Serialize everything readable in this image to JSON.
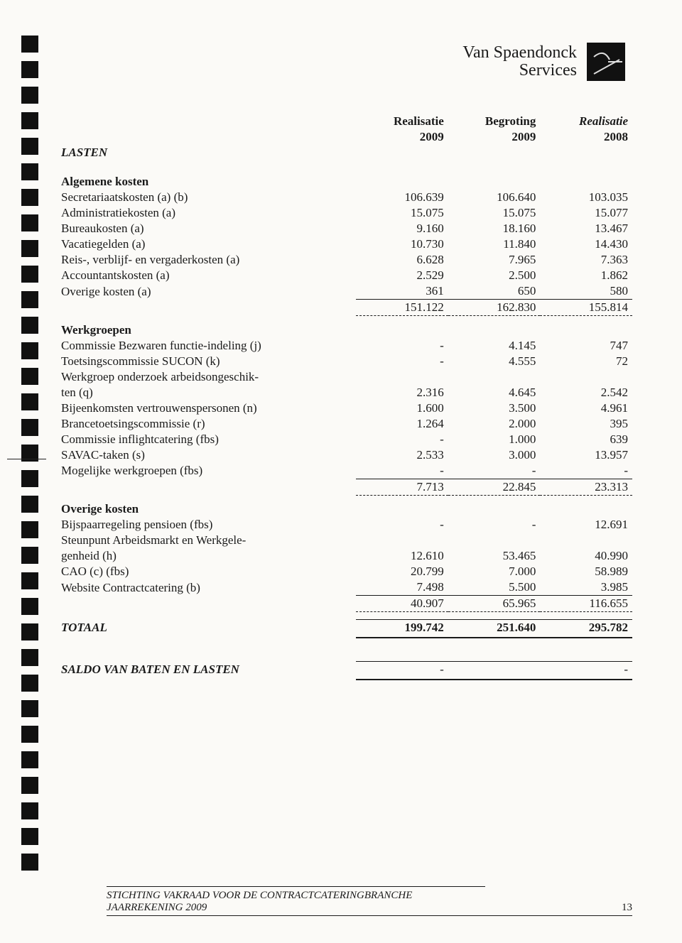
{
  "colors": {
    "background": "#fbfaf7",
    "text": "#1a1a1a",
    "logo_bg": "#111111",
    "logo_stroke": "#dcdcdc"
  },
  "typography": {
    "body_fontsize": 17,
    "header_fontsize": 24,
    "family": "Times New Roman"
  },
  "header": {
    "line1": "Van Spaendonck",
    "line2": "Services"
  },
  "columns": {
    "col1": "Realisatie",
    "col1_year": "2009",
    "col2": "Begroting",
    "col2_year": "2009",
    "col3": "Realisatie",
    "col3_year": "2008"
  },
  "lasten_heading": "LASTEN",
  "sections": {
    "algemene": {
      "title": "Algemene kosten",
      "rows": [
        {
          "label": "Secretariaatskosten (a) (b)",
          "v1": "106.639",
          "v2": "106.640",
          "v3": "103.035"
        },
        {
          "label": "Administratiekosten (a)",
          "v1": "15.075",
          "v2": "15.075",
          "v3": "15.077"
        },
        {
          "label": "Bureaukosten (a)",
          "v1": "9.160",
          "v2": "18.160",
          "v3": "13.467"
        },
        {
          "label": "Vacatiegelden (a)",
          "v1": "10.730",
          "v2": "11.840",
          "v3": "14.430"
        },
        {
          "label": "Reis-, verblijf- en vergaderkosten (a)",
          "v1": "6.628",
          "v2": "7.965",
          "v3": "7.363"
        },
        {
          "label": "Accountantskosten (a)",
          "v1": "2.529",
          "v2": "2.500",
          "v3": "1.862"
        },
        {
          "label": "Overige kosten (a)",
          "v1": "361",
          "v2": "650",
          "v3": "580"
        }
      ],
      "subtotal": {
        "v1": "151.122",
        "v2": "162.830",
        "v3": "155.814"
      }
    },
    "werkgroepen": {
      "title": "Werkgroepen",
      "rows": [
        {
          "label": "Commissie Bezwaren functie-indeling (j)",
          "v1": "-",
          "v2": "4.145",
          "v3": "747"
        },
        {
          "label": "Toetsingscommissie SUCON (k)",
          "v1": "-",
          "v2": "4.555",
          "v3": "72"
        },
        {
          "label": "Werkgroep onderzoek arbeidsongeschik-",
          "v1": "",
          "v2": "",
          "v3": ""
        },
        {
          "label": "ten (q)",
          "v1": "2.316",
          "v2": "4.645",
          "v3": "2.542"
        },
        {
          "label": "Bijeenkomsten vertrouwenspersonen (n)",
          "v1": "1.600",
          "v2": "3.500",
          "v3": "4.961"
        },
        {
          "label": "Brancetoetsingscommissie (r)",
          "v1": "1.264",
          "v2": "2.000",
          "v3": "395"
        },
        {
          "label": "Commissie inflightcatering (fbs)",
          "v1": "-",
          "v2": "1.000",
          "v3": "639"
        },
        {
          "label": "SAVAC-taken (s)",
          "v1": "2.533",
          "v2": "3.000",
          "v3": "13.957"
        },
        {
          "label": "Mogelijke werkgroepen (fbs)",
          "v1": "-",
          "v2": "-",
          "v3": "-"
        }
      ],
      "subtotal": {
        "v1": "7.713",
        "v2": "22.845",
        "v3": "23.313"
      }
    },
    "overige": {
      "title": "Overige kosten",
      "rows": [
        {
          "label": "Bijspaarregeling pensioen (fbs)",
          "v1": "-",
          "v2": "-",
          "v3": "12.691"
        },
        {
          "label": "Steunpunt Arbeidsmarkt en Werkgele-",
          "v1": "",
          "v2": "",
          "v3": ""
        },
        {
          "label": "genheid (h)",
          "v1": "12.610",
          "v2": "53.465",
          "v3": "40.990"
        },
        {
          "label": "CAO (c) (fbs)",
          "v1": "20.799",
          "v2": "7.000",
          "v3": "58.989"
        },
        {
          "label": "Website Contractcatering (b)",
          "v1": "7.498",
          "v2": "5.500",
          "v3": "3.985"
        }
      ],
      "subtotal": {
        "v1": "40.907",
        "v2": "65.965",
        "v3": "116.655"
      }
    }
  },
  "totaal": {
    "label": "TOTAAL",
    "v1": "199.742",
    "v2": "251.640",
    "v3": "295.782"
  },
  "saldo": {
    "label": "SALDO VAN BATEN EN LASTEN",
    "v1": "-",
    "v2": "",
    "v3": "-"
  },
  "footer": {
    "line1": "STICHTING VAKRAAD VOOR DE CONTRACTCATERINGBRANCHE",
    "line2": "JAARREKENING 2009",
    "page": "13"
  }
}
